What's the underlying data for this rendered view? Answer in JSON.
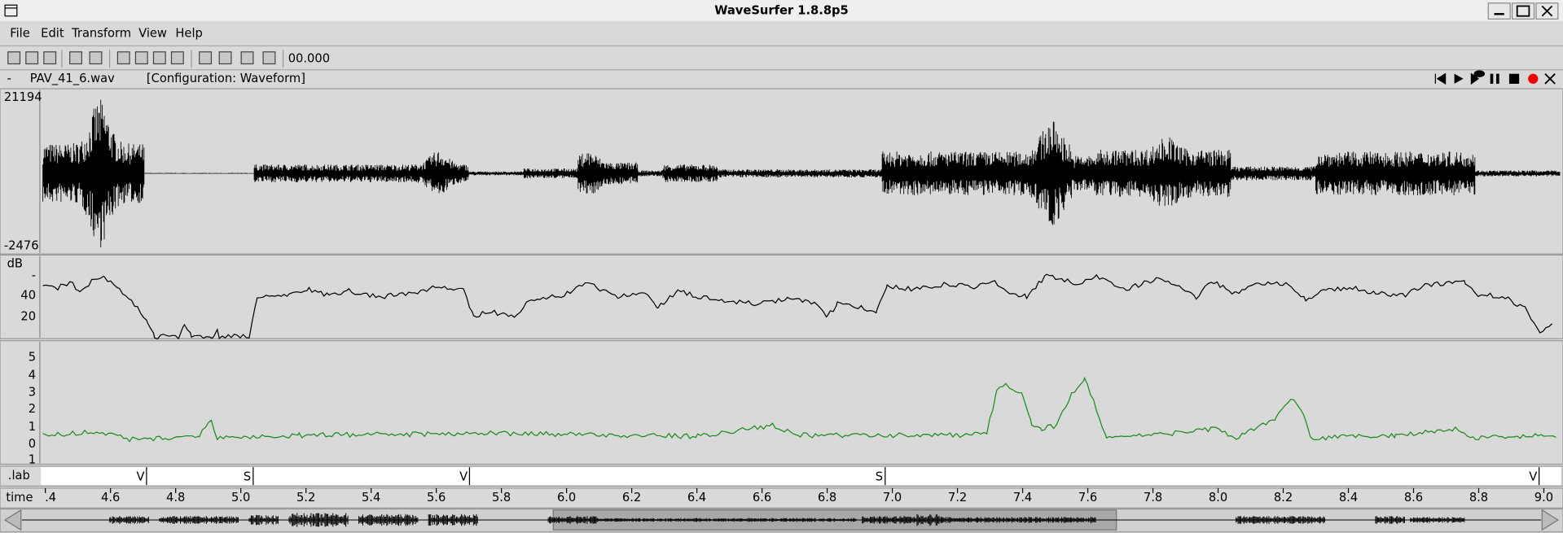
{
  "window": {
    "title": "WaveSurfer 1.8.8p5"
  },
  "menu": [
    "File",
    "Edit",
    "Transform",
    "View",
    "Help"
  ],
  "toolbar": {
    "time": "00.000"
  },
  "info": {
    "marker": "-",
    "file": "PAV_41_6.wav",
    "configuration": "[Configuration: Waveform]"
  },
  "waveform_pane": {
    "max_label": "21194",
    "min_label": "-2476"
  },
  "power_pane": {
    "unit": "dB",
    "ticks": [
      "-",
      "40",
      "20"
    ]
  },
  "pitch_pane": {
    "ticks": [
      "5",
      "4",
      "3",
      "2",
      "1",
      "0",
      "1"
    ]
  },
  "label_pane": {
    "name": ".lab",
    "labels": [
      "V",
      "S",
      "V",
      "S",
      "V"
    ]
  },
  "time_axis": {
    "label": "time",
    "ticks": [
      ".4",
      "4.6",
      "4.8",
      "5.0",
      "5.2",
      "5.4",
      "5.6",
      "5.8",
      "6.0",
      "6.2",
      "6.4",
      "6.6",
      "6.8",
      "7.0",
      "7.2",
      "7.4",
      "7.6",
      "7.8",
      "8.0",
      "8.2",
      "8.4",
      "8.6",
      "8.8",
      "9.0"
    ]
  }
}
